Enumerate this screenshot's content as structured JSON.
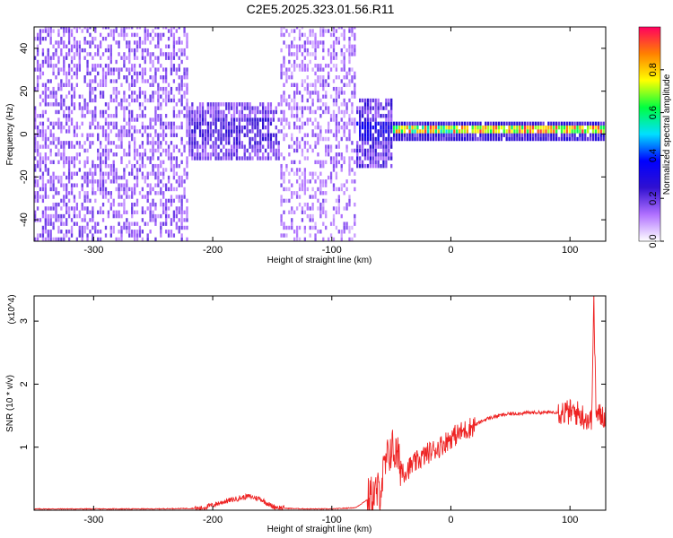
{
  "title": "C2E5.2025.323.01.56.R11",
  "chart_data": [
    {
      "type": "heatmap",
      "xlabel": "Height of straight line (km)",
      "ylabel": "Frequency (Hz)",
      "xlim": [
        -350,
        130
      ],
      "ylim": [
        -50,
        50
      ],
      "xticks": [
        -300,
        -200,
        -100,
        0,
        100
      ],
      "yticks": [
        -40,
        -20,
        0,
        20,
        40
      ],
      "grid": false,
      "colorbar": {
        "label": "Normalized spectral amplitude",
        "range": [
          0,
          1
        ],
        "ticks": [
          0.0,
          0.2,
          0.4,
          0.6,
          0.8
        ],
        "colormap": [
          "#ffffff",
          "#b070ff",
          "#3010d0",
          "#0000ff",
          "#00e0ff",
          "#00ff40",
          "#ffff00",
          "#ff8000",
          "#ff0060"
        ]
      },
      "regions": [
        {
          "x": [
            -350,
            -222
          ],
          "description": "scattered weak (violet) amplitude across full frequency band"
        },
        {
          "x": [
            -222,
            -145
          ],
          "description": "weak signal concentrated near 0 Hz (±15 Hz)"
        },
        {
          "x": [
            -145,
            -80
          ],
          "description": "scattered weak amplitude across full band"
        },
        {
          "x": [
            -80,
            -50
          ],
          "description": "broadband near 0 Hz with cyan/green spots"
        },
        {
          "x": [
            -50,
            130
          ],
          "description": "narrow strong line near 0–2 Hz (green/yellow/red)"
        }
      ]
    },
    {
      "type": "line",
      "xlabel": "Height of straight line (km)",
      "ylabel": "SNR (10 * v/v)",
      "y_multiplier": "(x10^4)",
      "xlim": [
        -350,
        130
      ],
      "ylim": [
        0,
        3.4
      ],
      "xticks": [
        -300,
        -200,
        -100,
        0,
        100
      ],
      "yticks": [
        1,
        2,
        3
      ],
      "grid": false,
      "series": [
        {
          "color": "#ee2222",
          "x": [
            -350,
            -300,
            -250,
            -210,
            -200,
            -190,
            -180,
            -170,
            -160,
            -150,
            -140,
            -120,
            -100,
            -80,
            -60,
            -55,
            -50,
            -45,
            -40,
            -30,
            -20,
            -10,
            0,
            10,
            20,
            30,
            40,
            50,
            60,
            70,
            80,
            90,
            100,
            105,
            110,
            115,
            118,
            120,
            122,
            125,
            130
          ],
          "y": [
            0.02,
            0.02,
            0.02,
            0.03,
            0.08,
            0.14,
            0.18,
            0.22,
            0.18,
            0.06,
            0.03,
            0.02,
            0.02,
            0.04,
            0.3,
            0.7,
            1.0,
            0.85,
            0.6,
            0.75,
            0.9,
            1.0,
            1.15,
            1.25,
            1.35,
            1.45,
            1.5,
            1.53,
            1.54,
            1.55,
            1.55,
            1.56,
            1.55,
            1.55,
            1.5,
            1.45,
            1.4,
            3.3,
            1.5,
            1.5,
            1.5
          ]
        }
      ]
    }
  ]
}
